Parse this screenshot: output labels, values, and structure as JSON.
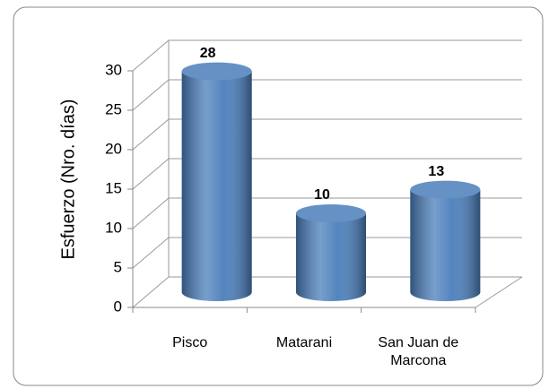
{
  "chart_data": {
    "type": "bar",
    "y_label": "Esfuerzo (Nro. días)",
    "categories": [
      "Pisco",
      "Matarani",
      "San Juan de Marcona"
    ],
    "values": [
      28,
      10,
      13
    ],
    "color": "#4a7ebb",
    "ylim": [
      0,
      30
    ],
    "yticks": [
      0,
      5,
      10,
      15,
      20,
      25,
      30
    ],
    "grid": true
  }
}
